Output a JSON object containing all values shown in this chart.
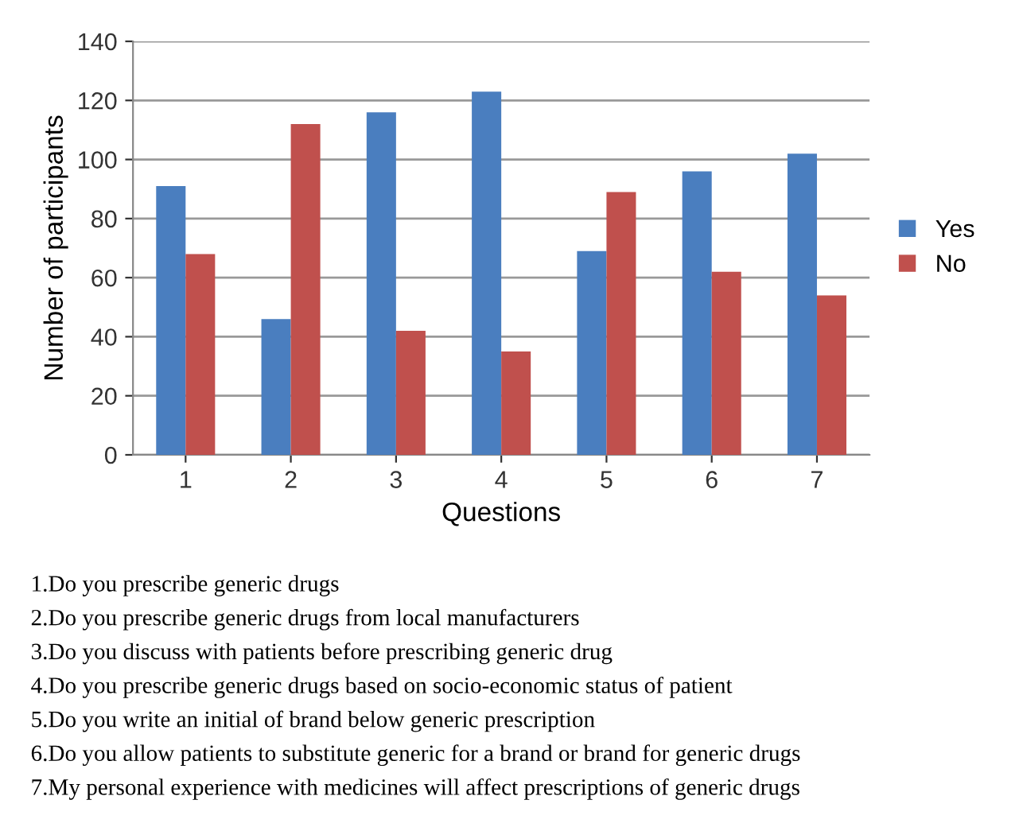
{
  "chart_data": {
    "type": "bar",
    "xlabel": "Questions",
    "ylabel": "Number of participants",
    "categories": [
      "1",
      "2",
      "3",
      "4",
      "5",
      "6",
      "7"
    ],
    "series": [
      {
        "name": "Yes",
        "color": "#4a7ebf",
        "values": [
          91,
          46,
          116,
          123,
          69,
          96,
          102
        ]
      },
      {
        "name": "No",
        "color": "#c0504d",
        "values": [
          68,
          112,
          42,
          35,
          89,
          62,
          54
        ]
      }
    ],
    "ylim": [
      0,
      140
    ],
    "yticks": [
      0,
      20,
      40,
      60,
      80,
      100,
      120,
      140
    ],
    "grid": "y",
    "legend": "right",
    "annotations": [
      "1.Do you prescribe generic drugs",
      "2.Do you prescribe generic drugs from local manufacturers",
      "3.Do you discuss with patients before prescribing generic drug",
      "4.Do you prescribe generic drugs based on socio-economic status of patient",
      "5.Do you write an initial of brand below generic prescription",
      "6.Do you allow patients to substitute generic for a brand or brand for generic drugs",
      "7.My personal experience with medicines will affect prescriptions of generic drugs"
    ]
  }
}
